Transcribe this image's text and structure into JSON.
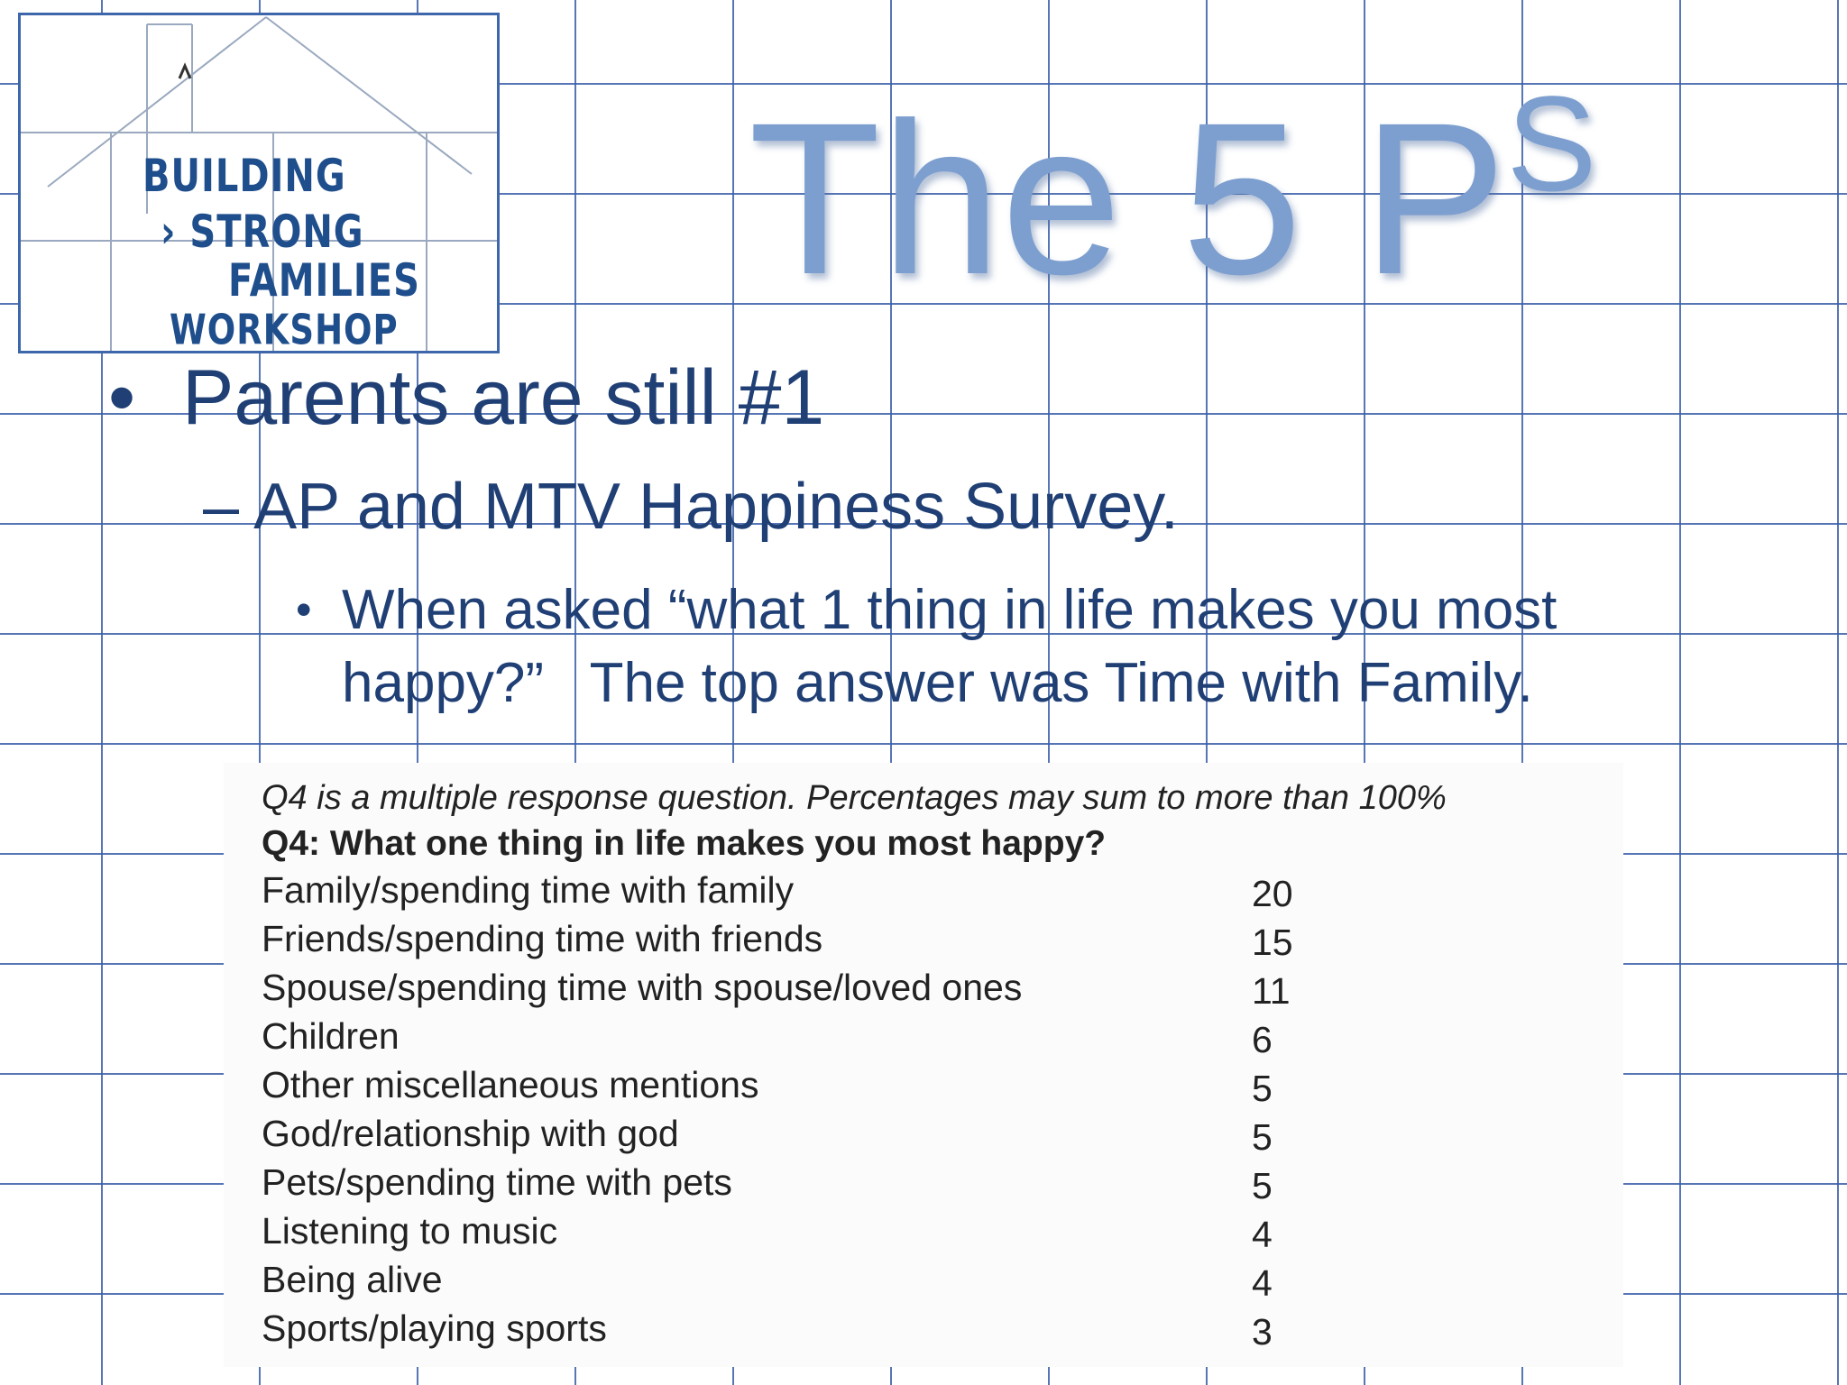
{
  "logo": {
    "line1": "BUILDING",
    "line2": "STRONG",
    "line3": "FAMILIES",
    "line4": "WORKSHOP"
  },
  "title": {
    "main": "The 5 P",
    "superscript": "S"
  },
  "bullets": {
    "level1": "Parents are still #1",
    "level2": "– AP and MTV Happiness Survey.",
    "level3_line1": "When asked “what 1 thing in life makes you most",
    "level3_line2": "happy?”   The top answer was Time with Family."
  },
  "survey": {
    "note": "Q4 is a multiple response question. Percentages may sum to more than 100%",
    "question": "Q4: What one thing in life makes you most happy?",
    "rows": [
      {
        "answer": "Family/spending time with family",
        "value": "20"
      },
      {
        "answer": "Friends/spending time with friends",
        "value": "15"
      },
      {
        "answer": "Spouse/spending time with spouse/loved ones",
        "value": "11"
      },
      {
        "answer": "Children",
        "value": "6"
      },
      {
        "answer": "Other miscellaneous mentions",
        "value": "5"
      },
      {
        "answer": "God/relationship with god",
        "value": "5"
      },
      {
        "answer": "Pets/spending time with pets",
        "value": "5"
      },
      {
        "answer": "Listening to music",
        "value": "4"
      },
      {
        "answer": "Being alive",
        "value": "4"
      },
      {
        "answer": "Sports/playing sports",
        "value": "3"
      }
    ]
  },
  "colors": {
    "grid": "#3a5ea8",
    "title": "#7d9fcf",
    "bullet_text": "#1f3f75",
    "logo_text": "#1f4e8c"
  }
}
